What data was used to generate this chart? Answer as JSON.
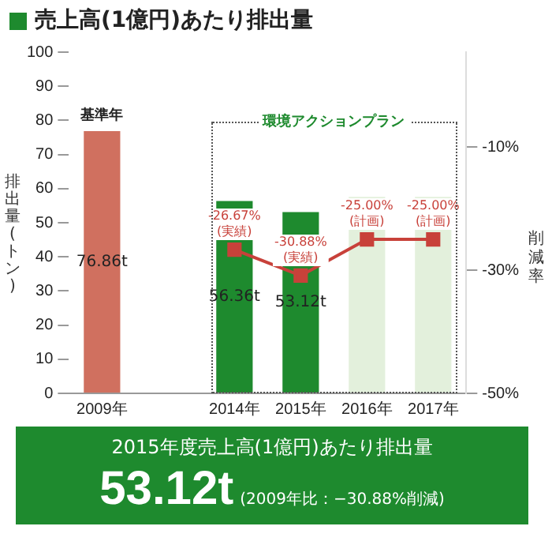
{
  "chart_data": {
    "type": "bar",
    "title": "売上高(1億円)あたり排出量",
    "ylabel": "排出量(トン)",
    "y2label": "削減率",
    "categories": [
      "2009年",
      null,
      "2014年",
      "2015年",
      "2016年",
      "2017年"
    ],
    "series": [
      {
        "colors": [
          "#d0705f",
          null,
          "#1e8a2e",
          "#1e8a2e",
          "#e3f0dc",
          "#e3f0dc"
        ],
        "values": [
          76.86,
          null,
          56.36,
          53.12,
          57.6,
          57.6
        ],
        "value_labels": [
          "76.86t",
          null,
          "56.36t",
          "53.12t",
          null,
          null
        ]
      },
      {
        "type": "line",
        "axis": "y2",
        "color": "#c8413a",
        "marker": "square",
        "values": [
          null,
          null,
          -26.67,
          -30.88,
          -25.0,
          -25.0
        ],
        "value_labels": [
          null,
          null,
          "-26.67%\n(実績)",
          "-30.88%\n(実績)",
          "-25.00%\n(計画)",
          "-25.00%\n(計画)"
        ]
      }
    ],
    "ylim": [
      0,
      100
    ],
    "yticks": [
      0,
      10,
      20,
      30,
      40,
      50,
      60,
      70,
      80,
      90,
      100
    ],
    "y2lim": [
      -50,
      5.4
    ],
    "y2ticks": [
      {
        "value": -10,
        "label": "-10%"
      },
      {
        "value": -30,
        "label": "-30%"
      },
      {
        "value": -50,
        "label": "-50%"
      }
    ],
    "grid": false,
    "legend": false,
    "annotations": [
      {
        "text": "基準年",
        "x": "2009年",
        "y": 76.86
      },
      "環境アクションプラン",
      "2015年度売上高(1億円)あたり排出量",
      "53.12t",
      "(2009年比：−30.88%削減)"
    ]
  }
}
